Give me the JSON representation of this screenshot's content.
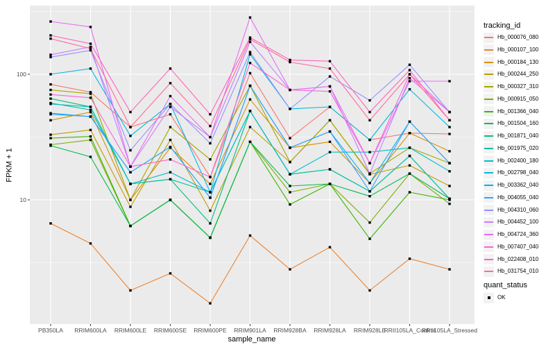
{
  "chart_data": {
    "type": "line",
    "title": "",
    "xlabel": "sample_name",
    "ylabel": "FPKM + 1",
    "y_scale": "log10",
    "y_ticks": [
      10,
      100
    ],
    "y_minor_ticks": [
      3.162,
      31.62,
      316.2
    ],
    "ylim": [
      1.2,
      340
    ],
    "grid": "on",
    "panel_bg": "#EBEBEB",
    "grid_color": "#FFFFFF",
    "point_shape": "filled-square",
    "point_color": "#000000",
    "legend_position": "right",
    "legend": {
      "color_title": "tracking_id",
      "shape_title": "quant_status",
      "shape_entries": [
        "OK"
      ]
    },
    "categories": [
      "PB350LA",
      "RRIM600LA",
      "RRIM600LE",
      "RRIM600SE",
      "RRIM600PE",
      "RRIM901LA",
      "RRIM928BA",
      "RRIM928LA",
      "RRIM928LE",
      "RRII105LA_Control",
      "RRII105LA_Stressed"
    ],
    "series": [
      {
        "name": "Hb_000076_080",
        "color": "#F8766D",
        "values": [
          83,
          72,
          38,
          48,
          15.2,
          102,
          31,
          55,
          30,
          34,
          33.5
        ]
      },
      {
        "name": "Hb_000107_100",
        "color": "#EA8331",
        "values": [
          6.5,
          4.5,
          1.9,
          2.6,
          1.5,
          5.2,
          2.8,
          4.2,
          1.9,
          3.4,
          2.8
        ]
      },
      {
        "name": "Hb_000184_130",
        "color": "#D89000",
        "values": [
          43,
          50,
          10,
          26,
          13.4,
          63,
          26,
          29,
          13.6,
          34,
          24.4
        ]
      },
      {
        "name": "Hb_000244_250",
        "color": "#C09B00",
        "values": [
          33,
          36,
          8.8,
          30,
          8.2,
          38,
          20,
          43,
          16,
          18.8,
          12.9
        ]
      },
      {
        "name": "Hb_000327_310",
        "color": "#A3A500",
        "values": [
          75,
          70,
          10,
          38,
          21,
          81,
          20,
          43,
          16.2,
          26,
          19.6
        ]
      },
      {
        "name": "Hb_000915_050",
        "color": "#7CAE00",
        "values": [
          27.5,
          30,
          6.2,
          10,
          5,
          29,
          11.5,
          13.4,
          6.6,
          16.2,
          9.3
        ]
      },
      {
        "name": "Hb_001366_040",
        "color": "#39B600",
        "values": [
          31,
          32,
          6.2,
          10,
          5,
          29,
          9.2,
          13.4,
          4.9,
          11.5,
          10
        ]
      },
      {
        "name": "Hb_001504_160",
        "color": "#00BB4E",
        "values": [
          27,
          22,
          6.2,
          10,
          5,
          29,
          12.9,
          13.4,
          10.7,
          16.2,
          10.2
        ]
      },
      {
        "name": "Hb_001871_040",
        "color": "#00BF7D",
        "values": [
          64,
          55,
          13.4,
          14.6,
          6.5,
          51,
          16,
          17.5,
          11.7,
          22.4,
          10.2
        ]
      },
      {
        "name": "Hb_001975_020",
        "color": "#00C1A3",
        "values": [
          59,
          52,
          13.4,
          14.6,
          11.5,
          51,
          16,
          17.5,
          11.7,
          22.4,
          10.2
        ]
      },
      {
        "name": "Hb_002400_180",
        "color": "#00BFC4",
        "values": [
          58,
          55,
          13.4,
          16.6,
          11.5,
          51,
          16,
          24,
          24,
          26,
          16.9
        ]
      },
      {
        "name": "Hb_002798_040",
        "color": "#00BAE0",
        "values": [
          100,
          111,
          32.3,
          58,
          11.5,
          144,
          53,
          55,
          30,
          76,
          38
        ]
      },
      {
        "name": "Hb_003362_040",
        "color": "#00B0F6",
        "values": [
          49,
          46,
          16.6,
          26.4,
          10.4,
          81,
          26,
          35,
          13.6,
          42,
          19.6
        ]
      },
      {
        "name": "Hb_004055_040",
        "color": "#35A2FF",
        "values": [
          48,
          46,
          16.6,
          26.4,
          10.4,
          81,
          26,
          35,
          11.7,
          42,
          19.6
        ]
      },
      {
        "name": "Hb_004310_060",
        "color": "#9590FF",
        "values": [
          137,
          155,
          24.8,
          58,
          28.2,
          150,
          53,
          96,
          62,
          119,
          50
        ]
      },
      {
        "name": "Hb_004452_100",
        "color": "#C77CFF",
        "values": [
          143,
          165,
          18.4,
          55,
          31.6,
          181,
          75,
          80,
          16.2,
          93,
          50
        ]
      },
      {
        "name": "Hb_004724_360",
        "color": "#E76BF3",
        "values": [
          263,
          238,
          18.4,
          67,
          31.6,
          283,
          75,
          80,
          19.6,
          88,
          88
        ]
      },
      {
        "name": "Hb_007407_040",
        "color": "#FA62DB",
        "values": [
          69,
          65,
          18.4,
          21,
          15.2,
          123,
          75,
          73,
          19.6,
          100,
          50
        ]
      },
      {
        "name": "Hb_022408_010",
        "color": "#FF62BC",
        "values": [
          204,
          175,
          50,
          111,
          48,
          196,
          130,
          127,
          50,
          108,
          43
        ]
      },
      {
        "name": "Hb_031754_010",
        "color": "#FF6A98",
        "values": [
          192,
          160,
          38,
          85,
          38.7,
          190,
          125,
          111,
          43,
          100,
          43
        ]
      }
    ]
  }
}
